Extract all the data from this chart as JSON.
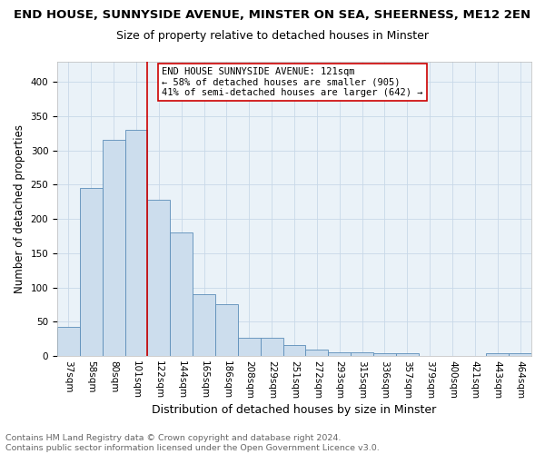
{
  "title": "END HOUSE, SUNNYSIDE AVENUE, MINSTER ON SEA, SHEERNESS, ME12 2EN",
  "subtitle": "Size of property relative to detached houses in Minster",
  "xlabel": "Distribution of detached houses by size in Minster",
  "ylabel": "Number of detached properties",
  "categories": [
    "37sqm",
    "58sqm",
    "80sqm",
    "101sqm",
    "122sqm",
    "144sqm",
    "165sqm",
    "186sqm",
    "208sqm",
    "229sqm",
    "251sqm",
    "272sqm",
    "293sqm",
    "315sqm",
    "336sqm",
    "357sqm",
    "379sqm",
    "400sqm",
    "421sqm",
    "443sqm",
    "464sqm"
  ],
  "values": [
    42,
    245,
    315,
    330,
    228,
    180,
    90,
    75,
    27,
    27,
    16,
    9,
    5,
    5,
    4,
    4,
    0,
    0,
    0,
    4,
    4
  ],
  "bar_color": "#ccdded",
  "bar_edge_color": "#5b8db8",
  "vline_color": "#cc0000",
  "annotation_text": "END HOUSE SUNNYSIDE AVENUE: 121sqm\n← 58% of detached houses are smaller (905)\n41% of semi-detached houses are larger (642) →",
  "annotation_box_color": "#ffffff",
  "annotation_box_edge": "#cc0000",
  "footer": "Contains HM Land Registry data © Crown copyright and database right 2024.\nContains public sector information licensed under the Open Government Licence v3.0.",
  "ylim": [
    0,
    430
  ],
  "yticks": [
    0,
    50,
    100,
    150,
    200,
    250,
    300,
    350,
    400
  ],
  "title_fontsize": 9.5,
  "subtitle_fontsize": 9,
  "xlabel_fontsize": 9,
  "ylabel_fontsize": 8.5,
  "tick_fontsize": 7.5,
  "annotation_fontsize": 7.5,
  "footer_fontsize": 6.8
}
